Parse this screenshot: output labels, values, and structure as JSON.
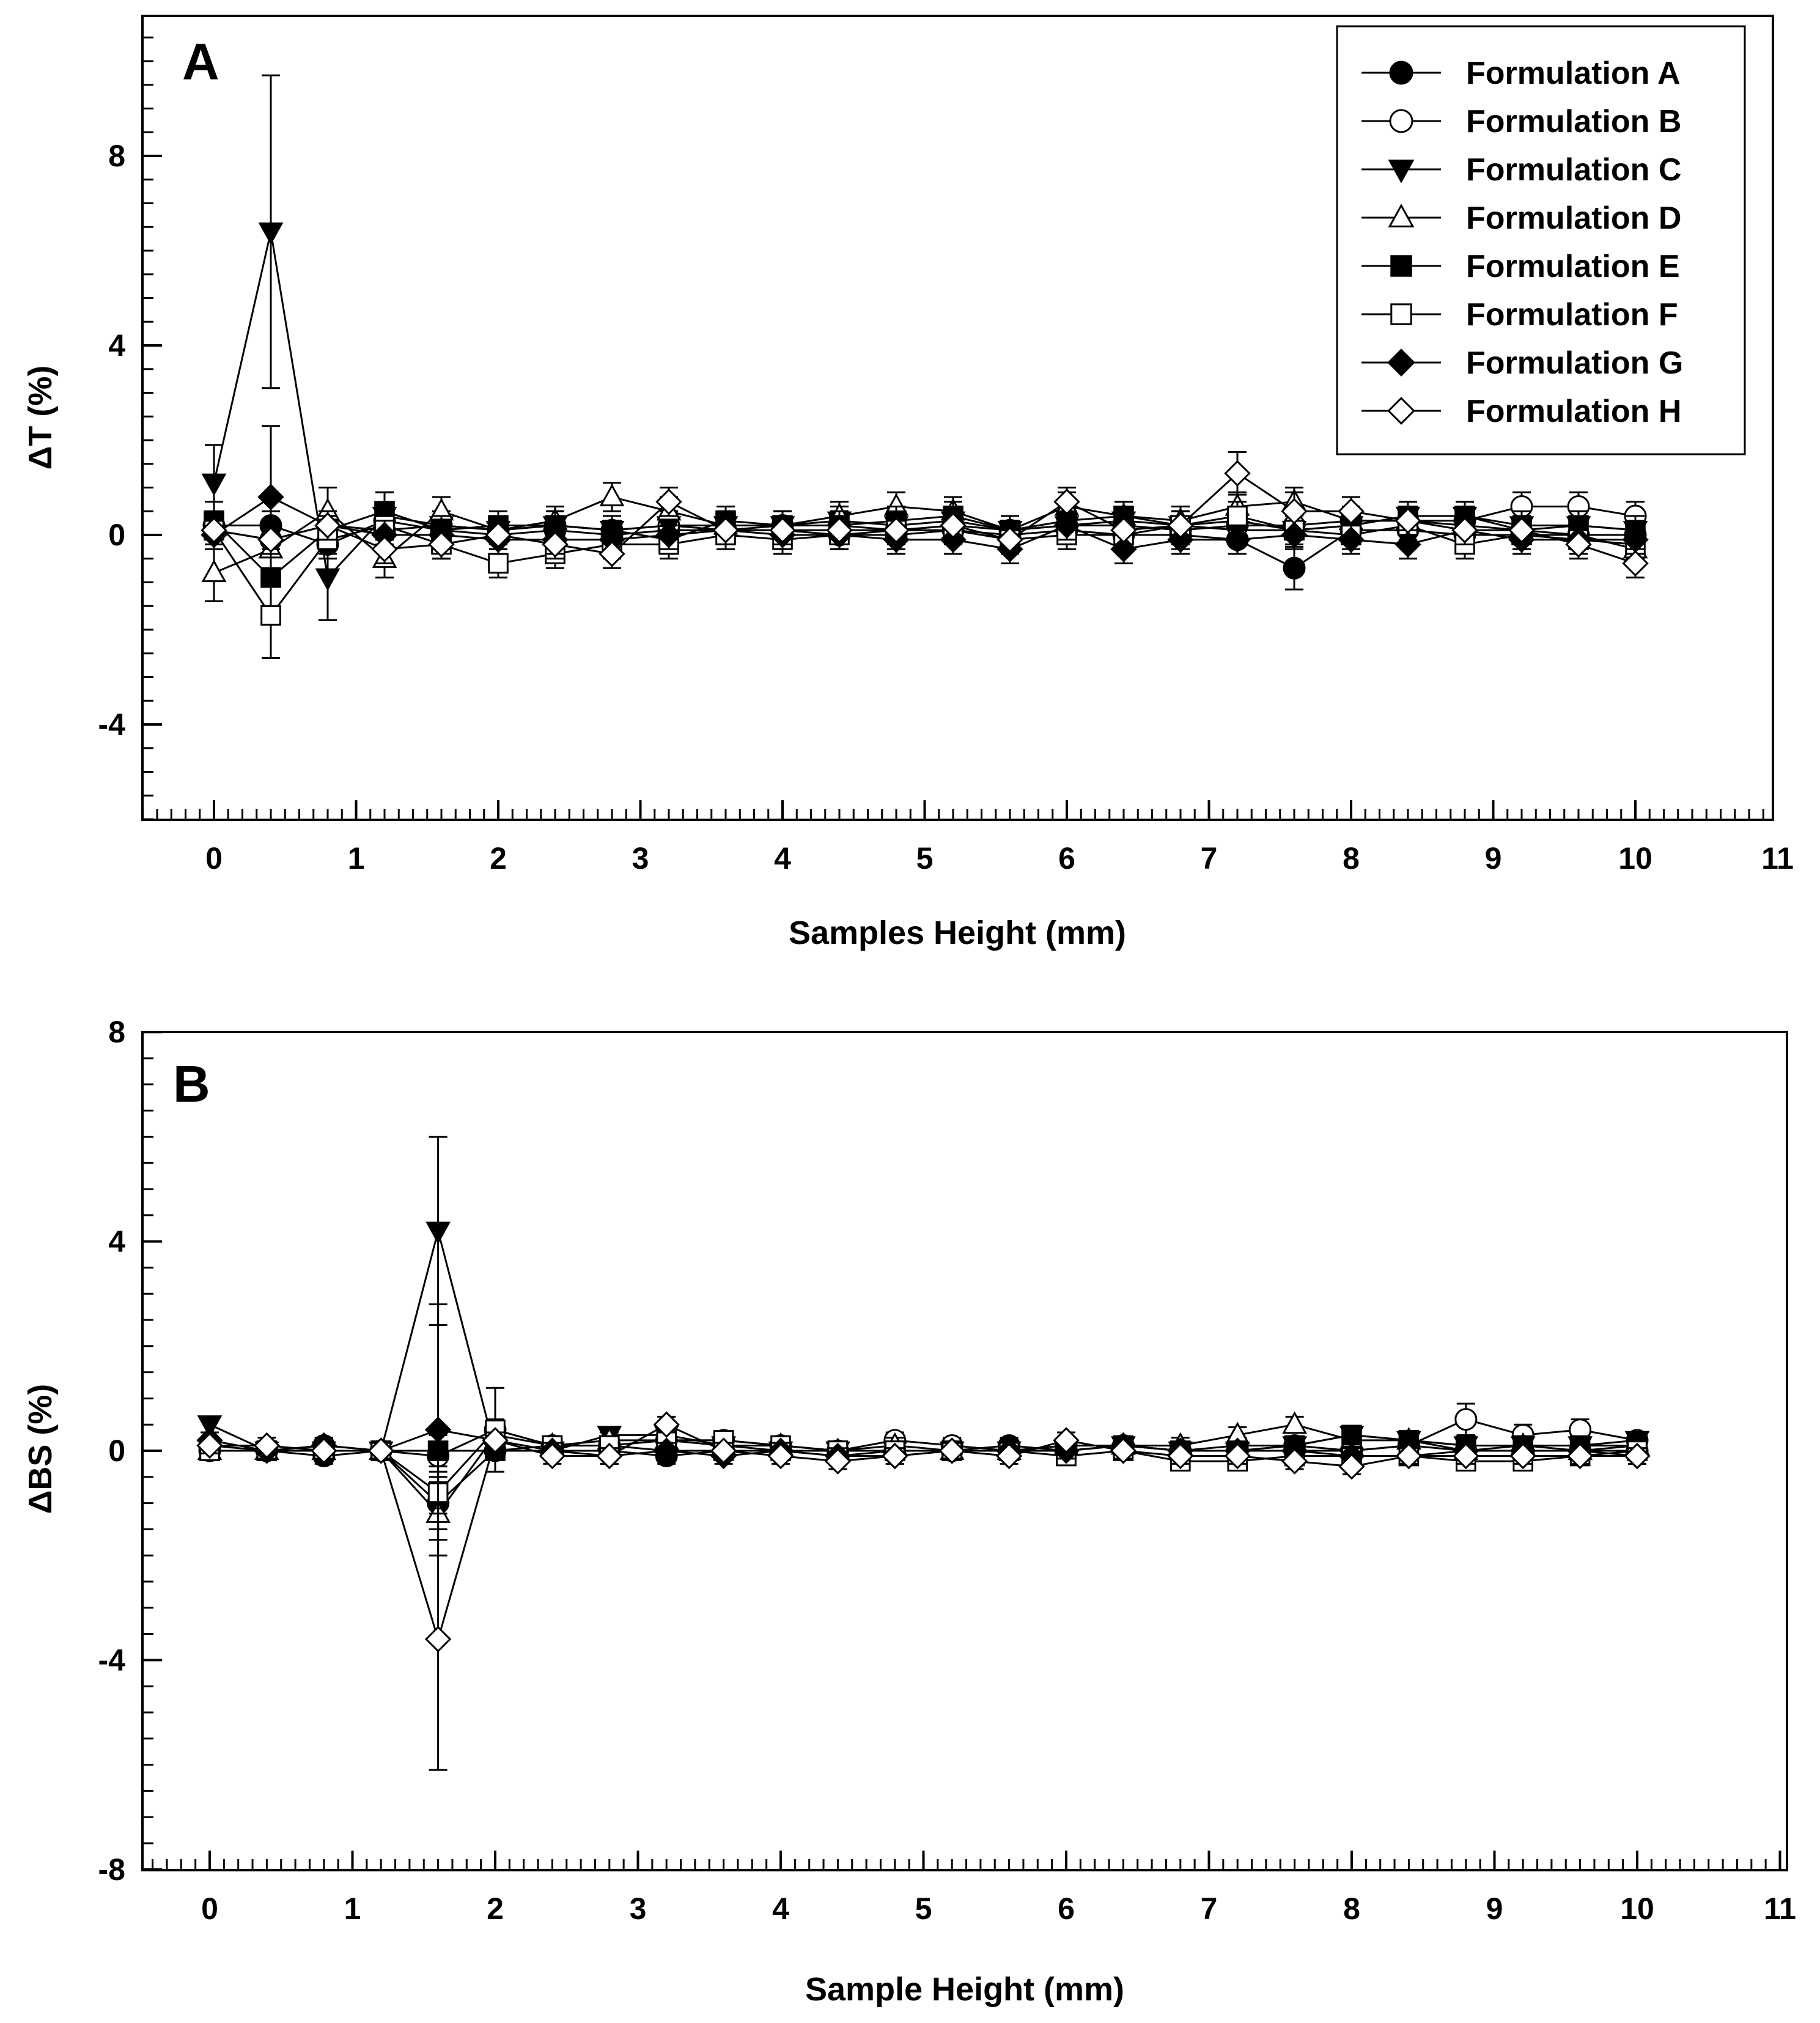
{
  "chart_data": [
    {
      "type": "line",
      "panel_label": "A",
      "xlabel": "Samples Height (mm)",
      "ylabel": "ΔT (%)",
      "xlim": [
        -0.5,
        11
      ],
      "ylim": [
        -6,
        11
      ],
      "xticks": [
        0,
        1,
        2,
        3,
        4,
        5,
        6,
        7,
        8,
        9,
        10,
        11
      ],
      "yticks": [
        -4,
        0,
        4,
        8
      ],
      "x": [
        0,
        0.4,
        0.8,
        1.2,
        1.6,
        2,
        2.4,
        2.8,
        3.2,
        3.6,
        4,
        4.4,
        4.8,
        5.2,
        5.6,
        6,
        6.4,
        6.8,
        7.2,
        7.6,
        8,
        8.4,
        8.8,
        9.2,
        9.6,
        10
      ],
      "series": [
        {
          "name": "Formulation A",
          "marker": "circle-filled",
          "values": [
            0.2,
            0.2,
            -0.2,
            0.3,
            0.1,
            0.0,
            0.1,
            0.0,
            0.1,
            0.1,
            0.1,
            0.0,
            0.0,
            0.1,
            0.0,
            0.1,
            0.0,
            0.0,
            -0.1,
            -0.7,
            0.1,
            0.1,
            0.0,
            0.0,
            0.0,
            0.0
          ],
          "errors": [
            0.3,
            0.3,
            0.3,
            0.3,
            0.3,
            0.3,
            0.3,
            0.3,
            0.3,
            0.3,
            0.3,
            0.3,
            0.3,
            0.3,
            0.3,
            0.3,
            0.3,
            0.3,
            0.3,
            0.45,
            0.3,
            0.3,
            0.3,
            0.3,
            0.3,
            0.3
          ]
        },
        {
          "name": "Formulation B",
          "marker": "circle-open",
          "values": [
            0.1,
            -0.1,
            0.2,
            0.1,
            0.2,
            0.1,
            0.2,
            0.1,
            0.2,
            0.1,
            0.2,
            0.2,
            0.1,
            0.2,
            0.1,
            0.2,
            0.2,
            0.1,
            0.2,
            0.2,
            0.3,
            0.3,
            0.3,
            0.6,
            0.6,
            0.4
          ],
          "errors": [
            0.3,
            0.3,
            0.3,
            0.3,
            0.3,
            0.3,
            0.3,
            0.3,
            0.3,
            0.3,
            0.3,
            0.3,
            0.3,
            0.3,
            0.3,
            0.3,
            0.3,
            0.3,
            0.3,
            0.3,
            0.3,
            0.3,
            0.3,
            0.3,
            0.3,
            0.3
          ]
        },
        {
          "name": "Formulation C",
          "marker": "triangle-down-filled",
          "values": [
            1.1,
            6.4,
            -0.9,
            0.4,
            0.2,
            0.1,
            0.2,
            0.1,
            0.2,
            0.2,
            0.2,
            0.3,
            0.2,
            0.3,
            0.1,
            0.2,
            0.3,
            0.2,
            0.1,
            0.1,
            0.2,
            0.4,
            0.4,
            0.2,
            0.2,
            0.1
          ],
          "errors": [
            0.8,
            3.3,
            0.9,
            0.5,
            0.3,
            0.3,
            0.3,
            0.3,
            0.3,
            0.3,
            0.3,
            0.3,
            0.3,
            0.3,
            0.3,
            0.3,
            0.3,
            0.3,
            0.3,
            0.3,
            0.3,
            0.3,
            0.3,
            0.3,
            0.3,
            0.3
          ]
        },
        {
          "name": "Formulation D",
          "marker": "triangle-up-open",
          "values": [
            -0.8,
            -0.3,
            0.5,
            -0.5,
            0.5,
            0.1,
            0.3,
            0.8,
            0.5,
            0.2,
            0.2,
            0.4,
            0.6,
            0.5,
            0.1,
            0.6,
            0.4,
            0.3,
            0.6,
            0.7,
            0.3,
            0.3,
            0.2,
            0.1,
            0.0,
            -0.3
          ],
          "errors": [
            0.6,
            0.6,
            0.5,
            0.4,
            0.3,
            0.3,
            0.3,
            0.3,
            0.3,
            0.3,
            0.3,
            0.3,
            0.3,
            0.3,
            0.3,
            0.3,
            0.3,
            0.3,
            0.3,
            0.3,
            0.3,
            0.3,
            0.3,
            0.3,
            0.3,
            0.3
          ]
        },
        {
          "name": "Formulation E",
          "marker": "square-filled",
          "values": [
            0.3,
            -0.9,
            0.1,
            0.5,
            0.1,
            0.2,
            0.2,
            0.1,
            -0.1,
            0.3,
            0.2,
            0.2,
            0.3,
            0.4,
            0.1,
            0.3,
            0.4,
            0.2,
            0.3,
            0.1,
            0.2,
            0.4,
            0.4,
            0.1,
            0.2,
            0.1
          ],
          "errors": [
            0.4,
            0.6,
            0.3,
            0.4,
            0.3,
            0.3,
            0.3,
            0.3,
            0.3,
            0.3,
            0.3,
            0.3,
            0.3,
            0.3,
            0.3,
            0.3,
            0.3,
            0.3,
            0.3,
            0.3,
            0.3,
            0.3,
            0.3,
            0.3,
            0.3,
            0.3
          ]
        },
        {
          "name": "Formulation F",
          "marker": "square-open",
          "values": [
            0.1,
            -1.7,
            -0.1,
            0.2,
            -0.2,
            -0.6,
            -0.4,
            -0.2,
            -0.2,
            0.0,
            -0.1,
            0.0,
            0.1,
            0.1,
            -0.1,
            0.0,
            0.0,
            0.2,
            0.4,
            0.1,
            0.0,
            0.2,
            -0.2,
            0.0,
            -0.1,
            -0.2
          ],
          "errors": [
            0.3,
            0.9,
            0.3,
            0.3,
            0.3,
            0.3,
            0.3,
            0.3,
            0.3,
            0.3,
            0.3,
            0.3,
            0.3,
            0.3,
            0.3,
            0.3,
            0.3,
            0.3,
            0.3,
            0.3,
            0.3,
            0.3,
            0.3,
            0.3,
            0.3,
            0.3
          ]
        },
        {
          "name": "Formulation G",
          "marker": "diamond-filled",
          "values": [
            0.0,
            0.8,
            0.2,
            0.0,
            0.0,
            -0.1,
            -0.1,
            -0.1,
            0.0,
            0.1,
            0.0,
            0.0,
            -0.1,
            -0.1,
            -0.3,
            0.2,
            -0.3,
            -0.1,
            -0.1,
            0.0,
            -0.1,
            -0.2,
            0.1,
            -0.1,
            -0.1,
            -0.1
          ],
          "errors": [
            0.3,
            1.5,
            0.3,
            0.3,
            0.3,
            0.3,
            0.3,
            0.3,
            0.3,
            0.3,
            0.3,
            0.3,
            0.3,
            0.3,
            0.3,
            0.3,
            0.3,
            0.3,
            0.3,
            0.3,
            0.3,
            0.3,
            0.3,
            0.3,
            0.3,
            0.3
          ]
        },
        {
          "name": "Formulation H",
          "marker": "diamond-open",
          "values": [
            0.1,
            -0.1,
            0.2,
            -0.3,
            -0.2,
            0.0,
            -0.2,
            -0.4,
            0.7,
            0.1,
            0.1,
            0.1,
            0.1,
            0.2,
            -0.1,
            0.7,
            0.1,
            0.2,
            1.3,
            0.5,
            0.5,
            0.3,
            0.1,
            0.1,
            -0.2,
            -0.6
          ],
          "errors": [
            0.3,
            0.3,
            0.3,
            0.3,
            0.3,
            0.3,
            0.3,
            0.3,
            0.3,
            0.3,
            0.3,
            0.3,
            0.3,
            0.3,
            0.3,
            0.3,
            0.3,
            0.3,
            0.45,
            0.4,
            0.3,
            0.3,
            0.3,
            0.3,
            0.3,
            0.3
          ]
        }
      ],
      "legend": {
        "position": "top-right",
        "entries": [
          "Formulation A",
          "Formulation B",
          "Formulation C",
          "Formulation D",
          "Formulation E",
          "Formulation F",
          "Formulation G",
          "Formulation H"
        ]
      }
    },
    {
      "type": "line",
      "panel_label": "B",
      "xlabel": "Sample Height (mm)",
      "ylabel": "ΔBS (%)",
      "xlim": [
        -0.5,
        11
      ],
      "ylim": [
        -8,
        8
      ],
      "xticks": [
        0,
        1,
        2,
        3,
        4,
        5,
        6,
        7,
        8,
        9,
        10,
        11
      ],
      "yticks": [
        -8,
        -4,
        0,
        4,
        8
      ],
      "x": [
        0,
        0.4,
        0.8,
        1.2,
        1.6,
        2,
        2.4,
        2.8,
        3.2,
        3.6,
        4,
        4.4,
        4.8,
        5.2,
        5.6,
        6,
        6.4,
        6.8,
        7.2,
        7.6,
        8,
        8.4,
        8.8,
        9.2,
        9.6,
        10
      ],
      "series": [
        {
          "name": "Formulation A",
          "marker": "circle-filled",
          "values": [
            0.0,
            0.0,
            -0.1,
            0.0,
            -1.0,
            0.0,
            0.0,
            0.0,
            -0.1,
            0.0,
            0.0,
            -0.1,
            0.0,
            0.0,
            0.1,
            0.0,
            0.1,
            0.0,
            0.0,
            0.0,
            0.0,
            0.1,
            0.0,
            0.0,
            0.0,
            0.0
          ],
          "errors": [
            0.15,
            0.15,
            0.15,
            0.15,
            0.5,
            0.15,
            0.15,
            0.15,
            0.15,
            0.15,
            0.15,
            0.15,
            0.15,
            0.15,
            0.15,
            0.15,
            0.15,
            0.15,
            0.15,
            0.15,
            0.15,
            0.15,
            0.15,
            0.15,
            0.15,
            0.15
          ]
        },
        {
          "name": "Formulation B",
          "marker": "circle-open",
          "values": [
            0.1,
            0.0,
            0.1,
            0.0,
            -0.1,
            0.4,
            0.1,
            0.1,
            0.2,
            0.2,
            0.1,
            0.0,
            0.2,
            0.1,
            0.0,
            0.1,
            0.1,
            0.0,
            0.1,
            0.1,
            0.0,
            0.1,
            0.6,
            0.3,
            0.4,
            0.2
          ],
          "errors": [
            0.15,
            0.15,
            0.15,
            0.15,
            0.5,
            0.8,
            0.15,
            0.15,
            0.15,
            0.15,
            0.15,
            0.15,
            0.15,
            0.15,
            0.15,
            0.15,
            0.15,
            0.15,
            0.15,
            0.15,
            0.15,
            0.15,
            0.3,
            0.2,
            0.2,
            0.15
          ]
        },
        {
          "name": "Formulation C",
          "marker": "triangle-down-filled",
          "values": [
            0.5,
            0.0,
            0.0,
            0.0,
            4.2,
            0.0,
            0.0,
            0.3,
            0.3,
            0.1,
            0.0,
            0.0,
            0.0,
            0.0,
            0.0,
            0.0,
            0.1,
            0.0,
            0.0,
            0.1,
            0.3,
            0.2,
            0.1,
            0.1,
            0.1,
            0.2
          ],
          "errors": [
            0.15,
            0.15,
            0.15,
            0.15,
            1.8,
            0.15,
            0.15,
            0.15,
            0.15,
            0.15,
            0.15,
            0.15,
            0.15,
            0.15,
            0.15,
            0.15,
            0.15,
            0.15,
            0.15,
            0.15,
            0.15,
            0.15,
            0.15,
            0.15,
            0.15,
            0.15
          ]
        },
        {
          "name": "Formulation D",
          "marker": "triangle-up-open",
          "values": [
            0.0,
            0.0,
            0.0,
            0.0,
            -1.2,
            0.3,
            0.1,
            0.2,
            0.2,
            0.1,
            0.1,
            0.0,
            0.1,
            0.0,
            0.0,
            0.1,
            0.1,
            0.1,
            0.3,
            0.5,
            0.2,
            0.2,
            0.0,
            0.1,
            0.0,
            0.1
          ],
          "errors": [
            0.15,
            0.15,
            0.15,
            0.15,
            0.5,
            0.15,
            0.15,
            0.15,
            0.15,
            0.15,
            0.15,
            0.15,
            0.15,
            0.15,
            0.15,
            0.15,
            0.15,
            0.15,
            0.15,
            0.15,
            0.15,
            0.15,
            0.15,
            0.15,
            0.15,
            0.15
          ]
        },
        {
          "name": "Formulation E",
          "marker": "square-filled",
          "values": [
            0.0,
            0.0,
            0.0,
            0.0,
            0.0,
            0.0,
            0.1,
            0.1,
            0.0,
            0.0,
            0.0,
            0.0,
            0.0,
            0.0,
            0.0,
            0.0,
            0.1,
            0.0,
            0.0,
            0.1,
            0.3,
            0.2,
            0.1,
            0.1,
            0.1,
            0.1
          ],
          "errors": [
            0.15,
            0.15,
            0.15,
            0.15,
            0.3,
            0.15,
            0.15,
            0.15,
            0.15,
            0.15,
            0.15,
            0.15,
            0.15,
            0.15,
            0.15,
            0.15,
            0.15,
            0.15,
            0.15,
            0.15,
            0.15,
            0.15,
            0.15,
            0.15,
            0.15,
            0.15
          ]
        },
        {
          "name": "Formulation F",
          "marker": "square-open",
          "values": [
            0.0,
            0.0,
            0.0,
            0.0,
            -0.8,
            0.4,
            0.1,
            0.1,
            0.2,
            0.2,
            0.1,
            0.0,
            0.0,
            0.0,
            0.0,
            -0.1,
            0.0,
            -0.2,
            -0.2,
            -0.1,
            -0.1,
            -0.1,
            -0.2,
            -0.2,
            -0.1,
            0.0
          ],
          "errors": [
            0.15,
            0.15,
            0.15,
            0.15,
            0.4,
            0.2,
            0.15,
            0.15,
            0.15,
            0.15,
            0.15,
            0.15,
            0.15,
            0.15,
            0.15,
            0.15,
            0.15,
            0.15,
            0.15,
            0.15,
            0.15,
            0.15,
            0.15,
            0.15,
            0.15,
            0.15
          ]
        },
        {
          "name": "Formulation G",
          "marker": "diamond-filled",
          "values": [
            0.2,
            0.0,
            0.1,
            0.0,
            0.4,
            0.2,
            0.0,
            -0.1,
            0.0,
            -0.1,
            0.0,
            -0.1,
            -0.1,
            0.0,
            0.0,
            0.0,
            0.1,
            0.0,
            0.0,
            0.0,
            -0.1,
            -0.1,
            0.0,
            0.0,
            0.0,
            -0.1
          ],
          "errors": [
            0.15,
            0.15,
            0.15,
            0.15,
            2.4,
            0.15,
            0.15,
            0.15,
            0.15,
            0.15,
            0.15,
            0.15,
            0.15,
            0.15,
            0.15,
            0.15,
            0.15,
            0.15,
            0.15,
            0.15,
            0.15,
            0.15,
            0.15,
            0.15,
            0.15,
            0.15
          ]
        },
        {
          "name": "Formulation H",
          "marker": "diamond-open",
          "values": [
            0.1,
            0.1,
            0.0,
            0.0,
            -3.6,
            0.2,
            -0.1,
            -0.1,
            0.5,
            0.0,
            -0.1,
            -0.2,
            -0.1,
            0.0,
            -0.1,
            0.2,
            0.0,
            -0.1,
            -0.1,
            -0.2,
            -0.3,
            -0.1,
            -0.1,
            -0.1,
            -0.1,
            -0.1
          ],
          "errors": [
            0.15,
            0.15,
            0.15,
            0.15,
            2.5,
            0.15,
            0.15,
            0.15,
            0.15,
            0.15,
            0.15,
            0.15,
            0.15,
            0.15,
            0.15,
            0.15,
            0.15,
            0.15,
            0.15,
            0.15,
            0.15,
            0.15,
            0.15,
            0.15,
            0.15,
            0.15
          ]
        }
      ]
    }
  ]
}
